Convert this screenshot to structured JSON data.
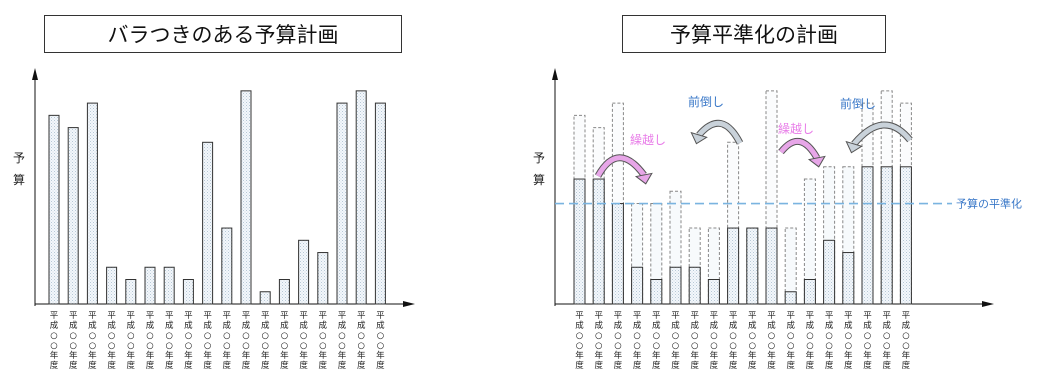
{
  "chart_data": [
    {
      "type": "bar",
      "title": "バラつきのある予算計画",
      "ylabel": "予算",
      "categories": [
        "平成○○年度",
        "平成○○年度",
        "平成○○年度",
        "平成○○年度",
        "平成○○年度",
        "平成○○年度",
        "平成○○年度",
        "平成○○年度",
        "平成○○年度",
        "平成○○年度",
        "平成○○年度",
        "平成○○年度",
        "平成○○年度",
        "平成○○年度",
        "平成○○年度",
        "平成○○年度",
        "平成○○年度",
        "平成○○年度"
      ],
      "values": [
        77,
        72,
        82,
        15,
        10,
        15,
        15,
        10,
        66,
        31,
        87,
        5,
        10,
        26,
        21,
        82,
        87,
        82
      ],
      "ylim": [
        0,
        100
      ],
      "grid": false
    },
    {
      "type": "bar",
      "title": "予算平準化の計画",
      "ylabel": "予算",
      "categories": [
        "平成○○年度",
        "平成○○年度",
        "平成○○年度",
        "平成○○年度",
        "平成○○年度",
        "平成○○年度",
        "平成○○年度",
        "平成○○年度",
        "平成○○年度",
        "平成○○年度",
        "平成○○年度",
        "平成○○年度",
        "平成○○年度",
        "平成○○年度",
        "平成○○年度",
        "平成○○年度",
        "平成○○年度",
        "平成○○年度"
      ],
      "series": [
        {
          "values": [
            77,
            72,
            82,
            15,
            10,
            15,
            15,
            10,
            66,
            31,
            87,
            5,
            10,
            26,
            21,
            82,
            87,
            82
          ]
        },
        {
          "values": [
            51,
            51,
            41,
            41,
            41,
            46,
            31,
            31,
            31,
            31,
            31,
            31,
            51,
            56,
            56,
            56,
            56,
            56
          ]
        }
      ],
      "reference_line": {
        "value": 41,
        "label": "予算の平準化"
      },
      "annotations": [
        {
          "text": "繰越し",
          "color": "#e87ce8"
        },
        {
          "text": "前倒し",
          "color": "#3a78c8"
        },
        {
          "text": "繰越し",
          "color": "#e87ce8"
        },
        {
          "text": "前倒し",
          "color": "#3a78c8"
        }
      ],
      "ylim": [
        0,
        100
      ],
      "grid": false
    }
  ]
}
